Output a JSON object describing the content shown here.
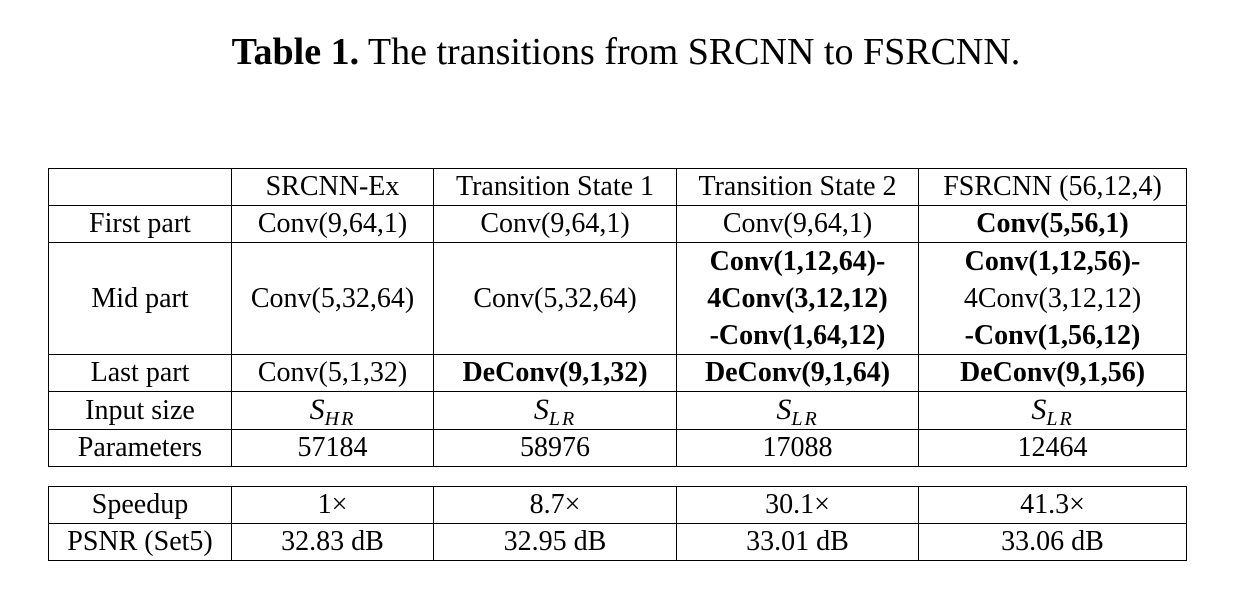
{
  "title": {
    "label": "Table 1.",
    "text": "The transitions from SRCNN to FSRCNN."
  },
  "table": {
    "header": [
      "SRCNN-Ex",
      "Transition State 1",
      "Transition State 2",
      "FSRCNN (56,12,4)"
    ],
    "rows": [
      {
        "label": "First part",
        "cells": [
          "Conv(9,64,1)",
          "Conv(9,64,1)",
          "Conv(9,64,1)",
          "Conv(5,56,1)"
        ]
      },
      {
        "label": "Mid part",
        "cells": [
          [
            "Conv(5,32,64)"
          ],
          [
            "Conv(5,32,64)"
          ],
          [
            "Conv(1,12,64)-",
            "4Conv(3,12,12)",
            "-Conv(1,64,12)"
          ],
          [
            "Conv(1,12,56)-",
            "4Conv(3,12,12)",
            "-Conv(1,56,12)"
          ]
        ]
      },
      {
        "label": "Last part",
        "cells": [
          "Conv(5,1,32)",
          "DeConv(9,1,32)",
          "DeConv(9,1,64)",
          "DeConv(9,1,56)"
        ]
      },
      {
        "label": "Input size",
        "cells": [
          {
            "base": "S",
            "sub": "HR"
          },
          {
            "base": "S",
            "sub": "LR"
          },
          {
            "base": "S",
            "sub": "LR"
          },
          {
            "base": "S",
            "sub": "LR"
          }
        ]
      },
      {
        "label": "Parameters",
        "cells": [
          "57184",
          "58976",
          "17088",
          "12464"
        ]
      }
    ],
    "metrics": [
      {
        "label": "Speedup",
        "cells": [
          "1×",
          "8.7×",
          "30.1×",
          "41.3×"
        ]
      },
      {
        "label": "PSNR (Set5)",
        "cells": [
          "32.83 dB",
          "32.95 dB",
          "33.01 dB",
          "33.06 dB"
        ]
      }
    ]
  }
}
